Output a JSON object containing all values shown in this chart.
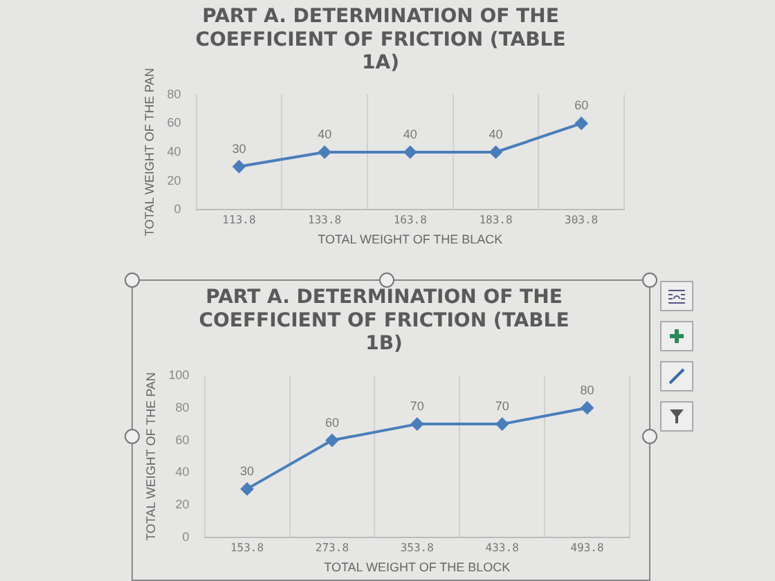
{
  "chart_data": [
    {
      "type": "line",
      "title": "PART A. DETERMINATION OF THE COEFFICIENT OF FRICTION (TABLE 1A)",
      "xlabel": "TOTAL WEIGHT OF THE BLACK",
      "ylabel": "TOTAL WEIGHT OF THE PAN",
      "categories": [
        "113.8",
        "133.8",
        "163.8",
        "183.8",
        "303.8"
      ],
      "series": [
        {
          "color": "#4a7ebb",
          "values": [
            30,
            40,
            40,
            40,
            60
          ]
        }
      ],
      "ylim": [
        0,
        80
      ],
      "yticks": [
        0,
        20,
        40,
        60,
        80
      ],
      "grid": "x",
      "legend": false,
      "marker": "diamond",
      "data_labels": true
    },
    {
      "type": "line",
      "title": "PART A. DETERMINATION OF THE COEFFICIENT OF FRICTION (TABLE 1B)",
      "xlabel": "TOTAL WEIGHT OF THE BLOCK",
      "ylabel": "TOTAL WEIGHT OF THE PAN",
      "categories": [
        "153.8",
        "273.8",
        "353.8",
        "433.8",
        "493.8"
      ],
      "series": [
        {
          "color": "#4a7ebb",
          "values": [
            30,
            60,
            70,
            70,
            80
          ]
        }
      ],
      "ylim": [
        0,
        100
      ],
      "yticks": [
        0,
        20,
        40,
        60,
        80,
        100
      ],
      "grid": "x",
      "legend": false,
      "marker": "diamond",
      "data_labels": true
    }
  ]
}
